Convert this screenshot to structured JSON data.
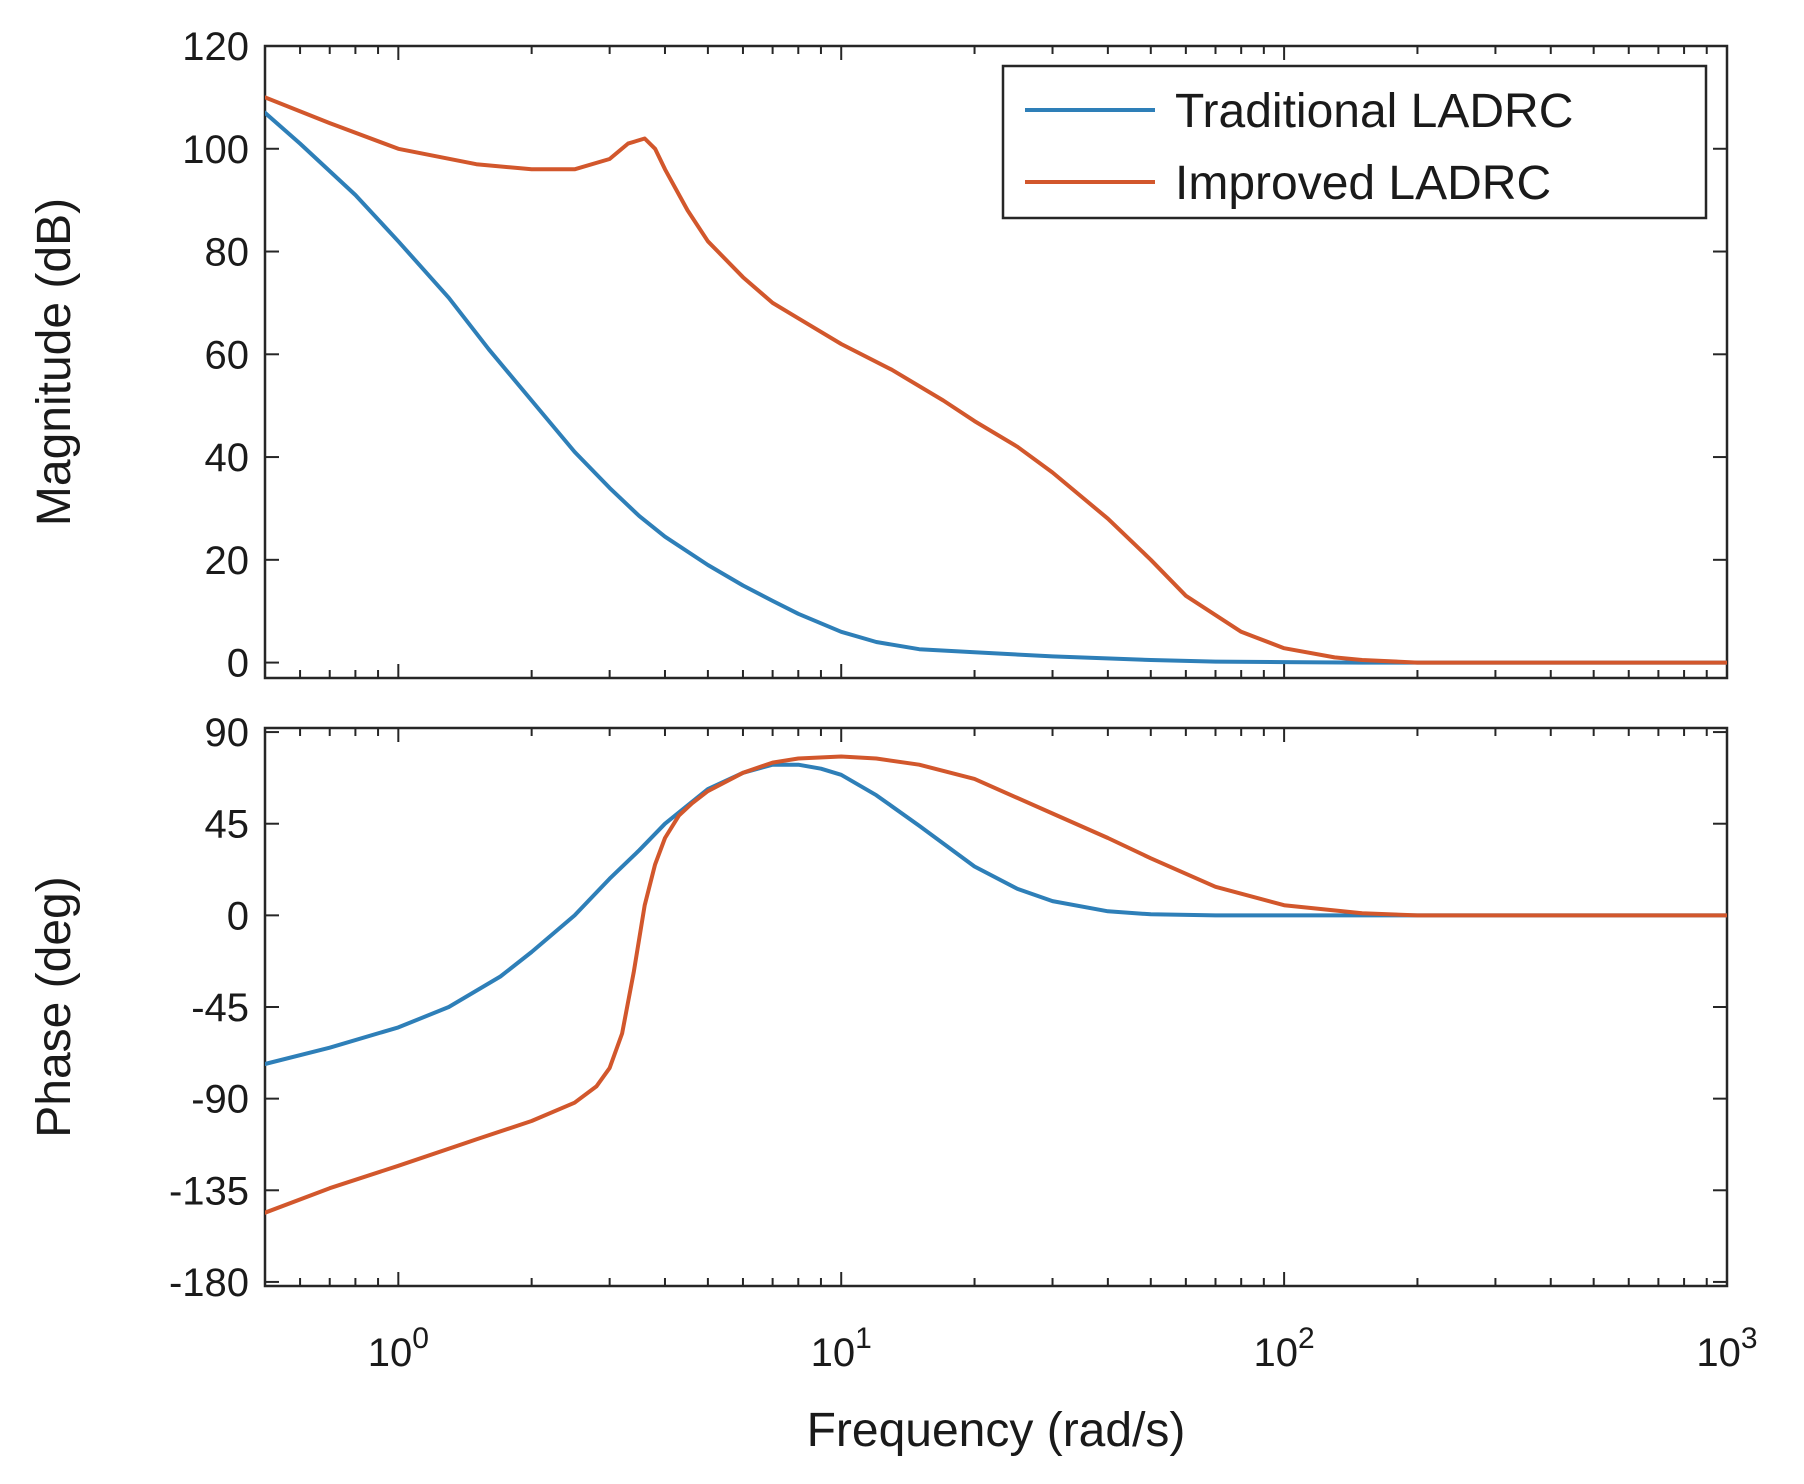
{
  "chart_data": [
    {
      "type": "line",
      "panel": "magnitude",
      "ylabel": "Magnitude (dB)",
      "xscale": "log",
      "xlim": [
        0.5,
        1000
      ],
      "ylim": [
        -3,
        120
      ],
      "yticks": [
        0,
        20,
        40,
        60,
        80,
        100,
        120
      ],
      "ytick_labels": [
        "0",
        "20",
        "40",
        "60",
        "80",
        "100",
        "120"
      ],
      "grid": false,
      "legend": "top-right",
      "series": [
        {
          "name": "Traditional LADRC",
          "color": "#2e7fb8",
          "x": [
            0.5,
            0.6,
            0.8,
            1.0,
            1.3,
            1.6,
            2.0,
            2.5,
            3.0,
            3.5,
            4.0,
            5.0,
            6.0,
            7.0,
            8.0,
            10,
            12,
            15,
            20,
            30,
            50,
            70,
            100,
            150,
            200,
            500,
            1000
          ],
          "y": [
            107,
            101,
            91,
            82,
            71,
            61,
            51,
            41,
            34,
            28.5,
            24.5,
            19,
            15,
            12,
            9.5,
            6,
            4,
            2.6,
            2,
            1.2,
            0.5,
            0.2,
            0.1,
            0,
            0,
            0,
            0
          ]
        },
        {
          "name": "Improved LADRC",
          "color": "#d2572c",
          "x": [
            0.5,
            0.7,
            1.0,
            1.5,
            2.0,
            2.5,
            3.0,
            3.3,
            3.6,
            3.8,
            4.0,
            4.5,
            5.0,
            6.0,
            7.0,
            8.0,
            10,
            13,
            17,
            20,
            25,
            30,
            40,
            50,
            60,
            80,
            100,
            130,
            150,
            200,
            300,
            500,
            1000
          ],
          "y": [
            110,
            105,
            100,
            97,
            96,
            96,
            98,
            101,
            102,
            100,
            96,
            88,
            82,
            75,
            70,
            67,
            62,
            57,
            51,
            47,
            42,
            37,
            28,
            20,
            13,
            6,
            2.8,
            1,
            0.5,
            0,
            0,
            0,
            0
          ]
        }
      ]
    },
    {
      "type": "line",
      "panel": "phase",
      "ylabel": "Phase (deg)",
      "xlabel": "Frequency  (rad/s)",
      "xscale": "log",
      "xlim": [
        0.5,
        1000
      ],
      "ylim": [
        -182,
        92
      ],
      "yticks": [
        -180,
        -135,
        -90,
        -45,
        0,
        45,
        90
      ],
      "ytick_labels": [
        "-180",
        "-135",
        "-90",
        "-45",
        "0",
        "45",
        "90"
      ],
      "xticks": [
        1,
        10,
        100,
        1000
      ],
      "xtick_labels": [
        {
          "base": "10",
          "exp": "0"
        },
        {
          "base": "10",
          "exp": "1"
        },
        {
          "base": "10",
          "exp": "2"
        },
        {
          "base": "10",
          "exp": "3"
        }
      ],
      "grid": false,
      "series": [
        {
          "name": "Traditional LADRC",
          "color": "#2e7fb8",
          "x": [
            0.5,
            0.7,
            1.0,
            1.3,
            1.7,
            2.0,
            2.5,
            3.0,
            3.5,
            4.0,
            4.5,
            5.0,
            6.0,
            7.0,
            8.0,
            9.0,
            10,
            12,
            15,
            20,
            25,
            30,
            40,
            50,
            70,
            100,
            200,
            500,
            1000
          ],
          "y": [
            -73,
            -65,
            -55,
            -45,
            -30,
            -18,
            0,
            18,
            32,
            45,
            54,
            62,
            70,
            74,
            74,
            72,
            69,
            59,
            44,
            24,
            13,
            7,
            2,
            0.5,
            0,
            0,
            0,
            0,
            0
          ]
        },
        {
          "name": "Improved LADRC",
          "color": "#d2572c",
          "x": [
            0.5,
            0.7,
            1.0,
            1.5,
            2.0,
            2.5,
            2.8,
            3.0,
            3.2,
            3.4,
            3.6,
            3.8,
            4.0,
            4.3,
            4.6,
            5.0,
            6.0,
            7.0,
            8.0,
            10,
            12,
            15,
            20,
            30,
            40,
            50,
            70,
            100,
            150,
            200,
            500,
            1000
          ],
          "y": [
            -146,
            -134,
            -123,
            -110,
            -101,
            -92,
            -84,
            -75,
            -58,
            -28,
            5,
            25,
            38,
            49,
            55,
            61,
            70,
            75,
            77,
            78,
            77,
            74,
            67,
            50,
            38,
            28,
            14,
            5,
            1,
            0,
            0,
            0
          ]
        }
      ]
    }
  ]
}
